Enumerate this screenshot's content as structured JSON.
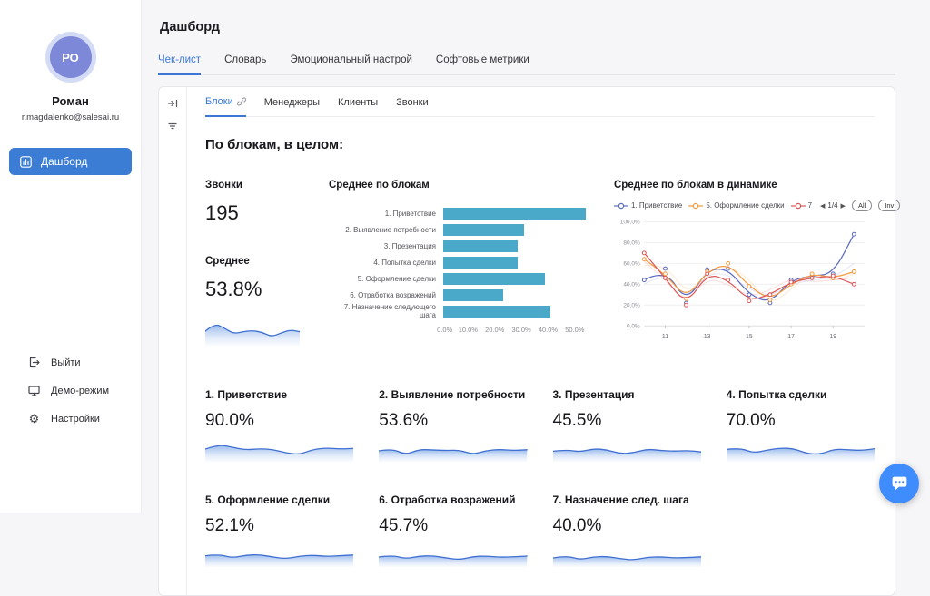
{
  "colors": {
    "accent": "#3a77d6",
    "nav_active_bg": "#3b7cd5",
    "avatar_bg": "#7d88d8",
    "bar_fill": "#4aa9c8",
    "spark_stroke": "#3f6fd0",
    "chat_button_bg": "#3f8cfe"
  },
  "sidebar": {
    "avatar_initials": "РО",
    "user_name": "Роман",
    "user_email": "r.magdalenko@salesai.ru",
    "nav_dashboard_label": "Дашборд",
    "footer_items": [
      {
        "label": "Выйти",
        "icon": "logout-icon"
      },
      {
        "label": "Демо-режим",
        "icon": "monitor-icon"
      },
      {
        "label": "Настройки",
        "icon": "gear-icon"
      }
    ]
  },
  "header": {
    "title": "Дашборд"
  },
  "tabs": [
    {
      "label": "Чек-лист",
      "active": true
    },
    {
      "label": "Словарь",
      "active": false
    },
    {
      "label": "Эмоциональный настрой",
      "active": false
    },
    {
      "label": "Софтовые метрики",
      "active": false
    }
  ],
  "panel": {
    "inner_tabs": [
      {
        "label": "Блоки",
        "active": true
      },
      {
        "label": "Менеджеры",
        "active": false
      },
      {
        "label": "Клиенты",
        "active": false
      },
      {
        "label": "Звонки",
        "active": false
      }
    ],
    "section_title": "По блокам, в целом:",
    "stats": {
      "calls_label": "Звонки",
      "calls_value": "195",
      "average_label": "Среднее",
      "average_value": "53.8%",
      "average_spark": [
        50,
        80,
        62,
        40,
        48,
        52,
        46,
        28,
        42,
        55,
        48
      ]
    }
  },
  "chart_data": [
    {
      "type": "bar",
      "orientation": "horizontal",
      "title": "Среднее по блокам",
      "categories": [
        "1. Приветствие",
        "2. Выявление потребности",
        "3. Презентация",
        "4. Попытка сделки",
        "5. Оформление сделки",
        "6. Отработка возражений",
        "7. Назначение следующего шага"
      ],
      "values": [
        48,
        27,
        25,
        25,
        34,
        20,
        36
      ],
      "xlim": [
        0,
        50
      ],
      "x_ticks": [
        "0.0%",
        "10.0%",
        "20.0%",
        "30.0%",
        "40.0%",
        "50.0%"
      ],
      "bar_color": "#4aa9c8",
      "grid": false
    },
    {
      "type": "line",
      "title": "Среднее по блокам в динамике",
      "x": [
        10,
        11,
        12,
        13,
        14,
        15,
        16,
        17,
        18,
        19,
        20
      ],
      "xlim": [
        10,
        20.5
      ],
      "x_ticks": [
        11,
        13,
        15,
        17,
        19
      ],
      "ylim": [
        0,
        100
      ],
      "y_ticks": [
        "100.0%",
        "80.0%",
        "60.0%",
        "40.0%",
        "20.0%",
        "0.0%"
      ],
      "legend_position": "top",
      "legend": [
        {
          "label": "1. Приветствие",
          "color": "#5b6abf"
        },
        {
          "label": "5. Оформление сделки",
          "color": "#f49a3f"
        },
        {
          "label": "7",
          "color": "#dd5757"
        }
      ],
      "pagination": {
        "current": "1/4",
        "all_label": "All",
        "inv_label": "Inv"
      },
      "series": [
        {
          "name": "1. Приветствие",
          "color": "#5b6abf",
          "values": [
            44,
            55,
            22,
            54,
            55,
            30,
            22,
            44,
            48,
            50,
            88
          ]
        },
        {
          "name": "5. Оформление сделки",
          "color": "#f49a3f",
          "values": [
            64,
            50,
            26,
            52,
            60,
            38,
            25,
            40,
            50,
            46,
            52
          ]
        },
        {
          "name": "7",
          "color": "#dd5757",
          "values": [
            70,
            46,
            20,
            50,
            44,
            24,
            30,
            42,
            46,
            48,
            40
          ]
        }
      ],
      "faded_series": [
        {
          "color": "#f8c99a",
          "values": [
            58,
            60,
            30,
            48,
            58,
            45,
            20,
            35,
            52,
            42,
            50
          ]
        },
        {
          "color": "#b9c3ec",
          "values": [
            40,
            52,
            25,
            50,
            50,
            35,
            28,
            40,
            44,
            46,
            60
          ]
        },
        {
          "color": "#f0b0b0",
          "values": [
            62,
            44,
            22,
            46,
            40,
            28,
            34,
            46,
            42,
            44,
            46
          ]
        }
      ]
    }
  ],
  "metric_cards": [
    {
      "title": "1. Приветствие",
      "value": "90.0%",
      "spark": [
        60,
        85,
        70,
        55,
        62,
        58,
        38,
        30,
        58,
        66,
        60,
        64
      ]
    },
    {
      "title": "2. Выявление потребности",
      "value": "53.6%",
      "spark": [
        50,
        62,
        28,
        58,
        55,
        52,
        54,
        30,
        52,
        58,
        52,
        56
      ]
    },
    {
      "title": "3. Презентация",
      "value": "45.5%",
      "spark": [
        48,
        56,
        44,
        62,
        56,
        34,
        40,
        60,
        52,
        48,
        52,
        44
      ]
    },
    {
      "title": "4. Попытка сделки",
      "value": "70.0%",
      "spark": [
        58,
        66,
        38,
        54,
        66,
        62,
        34,
        32,
        60,
        56,
        52,
        62
      ]
    },
    {
      "title": "5. Оформление сделки",
      "value": "52.1%",
      "spark": [
        52,
        60,
        40,
        55,
        58,
        45,
        35,
        50,
        55,
        48,
        52,
        56
      ]
    },
    {
      "title": "6. Отработка возражений",
      "value": "45.7%",
      "spark": [
        45,
        55,
        35,
        50,
        52,
        40,
        30,
        48,
        50,
        44,
        46,
        50
      ]
    },
    {
      "title": "7. Назначение след. шага",
      "value": "40.0%",
      "spark": [
        40,
        52,
        30,
        46,
        48,
        36,
        28,
        44,
        46,
        40,
        42,
        46
      ]
    }
  ]
}
